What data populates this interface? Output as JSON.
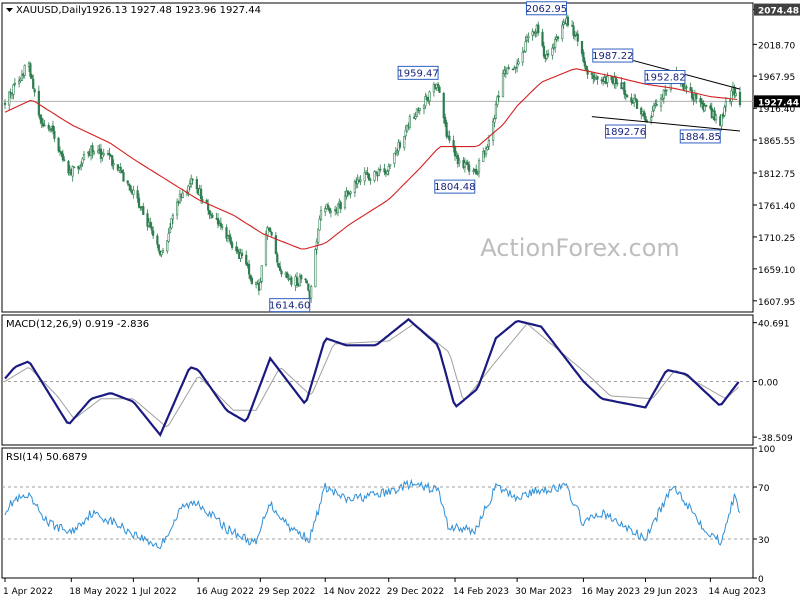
{
  "chart_data": [
    {
      "type": "candlestick",
      "title": "XAUUSD,Daily",
      "ohlc_header": "1926.13 1927.48 1923.96 1927.44",
      "watermark": "ActionForex.com",
      "ylim": [
        1590,
        2085
      ],
      "y_ticks": [
        2074.48,
        2018.7,
        1967.95,
        1916.4,
        1865.55,
        1812.75,
        1761.4,
        1710.25,
        1659.1,
        1607.95
      ],
      "y_tick_labels": [
        "2074.48",
        "2018.70",
        "1967.95",
        "1916.40",
        "1865.55",
        "1812.75",
        "1761.40",
        "1710.25",
        "1659.10",
        "1607.95"
      ],
      "current_price": 1927.44,
      "current_price_label": "1927.44",
      "top_price_label": "2074.48",
      "x_labels": [
        "1 Apr 2022",
        "18 May 2022",
        "1 Jul 2022",
        "16 Aug 2022",
        "29 Sep 2022",
        "14 Nov 2022",
        "29 Dec 2022",
        "14 Feb 2023",
        "30 Mar 2023",
        "16 May 2023",
        "29 Jun 2023",
        "14 Aug 2023"
      ],
      "price_path": [
        [
          "1 Apr 2022",
          1925
        ],
        [
          "12 Apr 2022",
          1970
        ],
        [
          "18 Apr 2022",
          1985
        ],
        [
          "25 Apr 2022",
          1900
        ],
        [
          "5 May 2022",
          1880
        ],
        [
          "16 May 2022",
          1810
        ],
        [
          "1 Jun 2022",
          1850
        ],
        [
          "15 Jun 2022",
          1835
        ],
        [
          "1 Jul 2022",
          1780
        ],
        [
          "10 Jul 2022",
          1740
        ],
        [
          "21 Jul 2022",
          1680
        ],
        [
          "1 Aug 2022",
          1765
        ],
        [
          "12 Aug 2022",
          1800
        ],
        [
          "22 Aug 2022",
          1760
        ],
        [
          "5 Sep 2022",
          1710
        ],
        [
          "19 Sep 2022",
          1665
        ],
        [
          "22 Sep 2022",
          1640
        ],
        [
          "28 Sep 2022",
          1625
        ],
        [
          "4 Oct 2022",
          1728
        ],
        [
          "13 Oct 2022",
          1660
        ],
        [
          "21 Oct 2022",
          1640
        ],
        [
          "31 Oct 2022",
          1640
        ],
        [
          "3 Nov 2022",
          1616
        ],
        [
          "11 Nov 2022",
          1755
        ],
        [
          "23 Nov 2022",
          1755
        ],
        [
          "5 Dec 2022",
          1800
        ],
        [
          "30 Dec 2022",
          1820
        ],
        [
          "12 Jan 2023",
          1895
        ],
        [
          "2 Feb 2023",
          1955
        ],
        [
          "8 Feb 2023",
          1875
        ],
        [
          "16 Feb 2023",
          1835
        ],
        [
          "28 Feb 2023",
          1810
        ],
        [
          "10 Mar 2023",
          1860
        ],
        [
          "20 Mar 2023",
          1975
        ],
        [
          "30 Mar 2023",
          1980
        ],
        [
          "5 Apr 2023",
          2022
        ],
        [
          "13 Apr 2023",
          2045
        ],
        [
          "19 Apr 2023",
          1995
        ],
        [
          "4 May 2023",
          2055
        ],
        [
          "10 May 2023",
          2035
        ],
        [
          "18 May 2023",
          1975
        ],
        [
          "30 May 2023",
          1960
        ],
        [
          "9 Jun 2023",
          1960
        ],
        [
          "22 Jun 2023",
          1925
        ],
        [
          "29 Jun 2023",
          1895
        ],
        [
          "10 Jul 2023",
          1935
        ],
        [
          "20 Jul 2023",
          1975
        ],
        [
          "27 Jul 2023",
          1950
        ],
        [
          "10 Aug 2023",
          1920
        ],
        [
          "21 Aug 2023",
          1890
        ],
        [
          "24 Aug 2023",
          1918
        ],
        [
          "30 Aug 2023",
          1945
        ],
        [
          "4 Sep 2023",
          1927
        ]
      ],
      "ma_path": [
        [
          "1 Apr 2022",
          1910
        ],
        [
          "20 Apr 2022",
          1930
        ],
        [
          "18 May 2022",
          1890
        ],
        [
          "15 Jun 2022",
          1860
        ],
        [
          "1 Jul 2022",
          1835
        ],
        [
          "16 Aug 2022",
          1770
        ],
        [
          "10 Sep 2022",
          1745
        ],
        [
          "1 Oct 2022",
          1715
        ],
        [
          "29 Oct 2022",
          1690
        ],
        [
          "14 Nov 2022",
          1700
        ],
        [
          "1 Dec 2022",
          1730
        ],
        [
          "29 Dec 2022",
          1770
        ],
        [
          "20 Jan 2023",
          1820
        ],
        [
          "3 Feb 2023",
          1855
        ],
        [
          "14 Feb 2023",
          1855
        ],
        [
          "2 Mar 2023",
          1855
        ],
        [
          "20 Mar 2023",
          1890
        ],
        [
          "30 Mar 2023",
          1920
        ],
        [
          "16 Apr 2023",
          1958
        ],
        [
          "10 May 2023",
          1980
        ],
        [
          "5 Jun 2023",
          1968
        ],
        [
          "29 Jun 2023",
          1955
        ],
        [
          "20 Jul 2023",
          1948
        ],
        [
          "14 Aug 2023",
          1935
        ],
        [
          "4 Sep 2023",
          1930
        ]
      ],
      "annotations": [
        {
          "text": "1614.60",
          "date": "3 Nov 2022",
          "value": 1614.6,
          "position": "below"
        },
        {
          "text": "1959.47",
          "date": "2 Feb 2023",
          "value": 1959.47,
          "position": "above"
        },
        {
          "text": "1804.48",
          "date": "28 Feb 2023",
          "value": 1804.48,
          "position": "below"
        },
        {
          "text": "2062.95",
          "date": "4 May 2023",
          "value": 2062.95,
          "position": "above"
        },
        {
          "text": "1987.22",
          "date": "20 Jun 2023",
          "value": 1987.22,
          "position": "above"
        },
        {
          "text": "1892.76",
          "date": "29 Jun 2023",
          "value": 1892.76,
          "position": "below"
        },
        {
          "text": "1952.82",
          "date": "27 Jul 2023",
          "value": 1952.82,
          "position": "above"
        },
        {
          "text": "1884.85",
          "date": "21 Aug 2023",
          "value": 1884.85,
          "position": "below"
        }
      ],
      "trendlines": [
        {
          "from": [
            "20 Jun 2023",
            1993
          ],
          "to": [
            "4 Sep 2023",
            1947
          ]
        },
        {
          "from": [
            "22 May 2023",
            1903
          ],
          "to": [
            "4 Sep 2023",
            1880
          ]
        }
      ],
      "colors": {
        "candle": "#2e7d4f",
        "ma": "#d42020",
        "price_line": "#b0b0b0"
      }
    },
    {
      "type": "line",
      "title": "MACD(12,26,9) 0.919 -2.836",
      "ylim": [
        -44,
        46
      ],
      "y_ticks": [
        40.691,
        0.0,
        -38.509
      ],
      "y_tick_labels": [
        "40.691",
        "0.00",
        "-38.509"
      ],
      "macd_path": [
        [
          "1 Apr 2022",
          2
        ],
        [
          "8 Apr 2022",
          10
        ],
        [
          "18 Apr 2022",
          14
        ],
        [
          "2 May 2022",
          -8
        ],
        [
          "16 May 2022",
          -30
        ],
        [
          "1 Jun 2022",
          -12
        ],
        [
          "15 Jun 2022",
          -8
        ],
        [
          "1 Jul 2022",
          -14
        ],
        [
          "20 Jul 2022",
          -37
        ],
        [
          "10 Aug 2022",
          10
        ],
        [
          "16 Aug 2022",
          8
        ],
        [
          "5 Sep 2022",
          -20
        ],
        [
          "19 Sep 2022",
          -28
        ],
        [
          "6 Oct 2022",
          16
        ],
        [
          "31 Oct 2022",
          -16
        ],
        [
          "14 Nov 2022",
          30
        ],
        [
          "29 Nov 2022",
          25
        ],
        [
          "20 Dec 2022",
          25
        ],
        [
          "12 Jan 2023",
          43
        ],
        [
          "2 Feb 2023",
          25
        ],
        [
          "14 Feb 2023",
          -18
        ],
        [
          "2 Mar 2023",
          -5
        ],
        [
          "15 Mar 2023",
          30
        ],
        [
          "30 Mar 2023",
          42
        ],
        [
          "16 Apr 2023",
          38
        ],
        [
          "16 May 2023",
          0
        ],
        [
          "29 May 2023",
          -12
        ],
        [
          "29 Jun 2023",
          -18
        ],
        [
          "14 Jul 2023",
          8
        ],
        [
          "28 Jul 2023",
          5
        ],
        [
          "21 Aug 2023",
          -17
        ],
        [
          "4 Sep 2023",
          1
        ]
      ],
      "signal_path": [
        [
          "1 Apr 2022",
          0
        ],
        [
          "18 Apr 2022",
          10
        ],
        [
          "8 May 2022",
          -10
        ],
        [
          "20 May 2022",
          -26
        ],
        [
          "8 Jun 2022",
          -12
        ],
        [
          "1 Jul 2022",
          -12
        ],
        [
          "25 Jul 2022",
          -32
        ],
        [
          "16 Aug 2022",
          4
        ],
        [
          "10 Sep 2022",
          -20
        ],
        [
          "26 Sep 2022",
          -20
        ],
        [
          "13 Oct 2022",
          10
        ],
        [
          "4 Nov 2022",
          -10
        ],
        [
          "20 Nov 2022",
          26
        ],
        [
          "29 Dec 2022",
          28
        ],
        [
          "16 Jan 2023",
          40
        ],
        [
          "10 Feb 2023",
          20
        ],
        [
          "20 Feb 2023",
          -14
        ],
        [
          "20 Mar 2023",
          20
        ],
        [
          "6 Apr 2023",
          40
        ],
        [
          "20 May 2023",
          4
        ],
        [
          "4 Jun 2023",
          -10
        ],
        [
          "4 Jul 2023",
          -12
        ],
        [
          "20 Jul 2023",
          8
        ],
        [
          "25 Aug 2023",
          -12
        ],
        [
          "4 Sep 2023",
          -3
        ]
      ],
      "colors": {
        "macd": "#1a1a80",
        "signal": "#a0a0a0"
      }
    },
    {
      "type": "line",
      "title": "RSI(14) 50.6879",
      "ylim": [
        0,
        100
      ],
      "y_ticks": [
        100,
        70,
        30,
        0
      ],
      "y_tick_labels": [
        "100",
        "70",
        "30",
        "0"
      ],
      "rsi_path": [
        [
          "1 Apr 2022",
          52
        ],
        [
          "8 Apr 2022",
          60
        ],
        [
          "18 Apr 2022",
          62
        ],
        [
          "2 May 2022",
          42
        ],
        [
          "18 May 2022",
          35
        ],
        [
          "1 Jun 2022",
          50
        ],
        [
          "15 Jun 2022",
          44
        ],
        [
          "1 Jul 2022",
          34
        ],
        [
          "20 Jul 2022",
          24
        ],
        [
          "5 Aug 2022",
          55
        ],
        [
          "16 Aug 2022",
          58
        ],
        [
          "5 Sep 2022",
          38
        ],
        [
          "26 Sep 2022",
          26
        ],
        [
          "5 Oct 2022",
          58
        ],
        [
          "21 Oct 2022",
          38
        ],
        [
          "3 Nov 2022",
          30
        ],
        [
          "14 Nov 2022",
          70
        ],
        [
          "29 Nov 2022",
          60
        ],
        [
          "29 Dec 2022",
          66
        ],
        [
          "12 Jan 2023",
          72
        ],
        [
          "2 Feb 2023",
          68
        ],
        [
          "9 Feb 2023",
          40
        ],
        [
          "28 Feb 2023",
          36
        ],
        [
          "15 Mar 2023",
          70
        ],
        [
          "30 Mar 2023",
          62
        ],
        [
          "16 Apr 2023",
          68
        ],
        [
          "4 May 2023",
          70
        ],
        [
          "16 May 2023",
          42
        ],
        [
          "29 May 2023",
          50
        ],
        [
          "29 Jun 2023",
          30
        ],
        [
          "14 Jul 2023",
          62
        ],
        [
          "20 Jul 2023",
          70
        ],
        [
          "10 Aug 2023",
          38
        ],
        [
          "21 Aug 2023",
          28
        ],
        [
          "31 Aug 2023",
          62
        ],
        [
          "4 Sep 2023",
          51
        ]
      ],
      "colors": {
        "rsi": "#2e8fd6"
      }
    }
  ]
}
